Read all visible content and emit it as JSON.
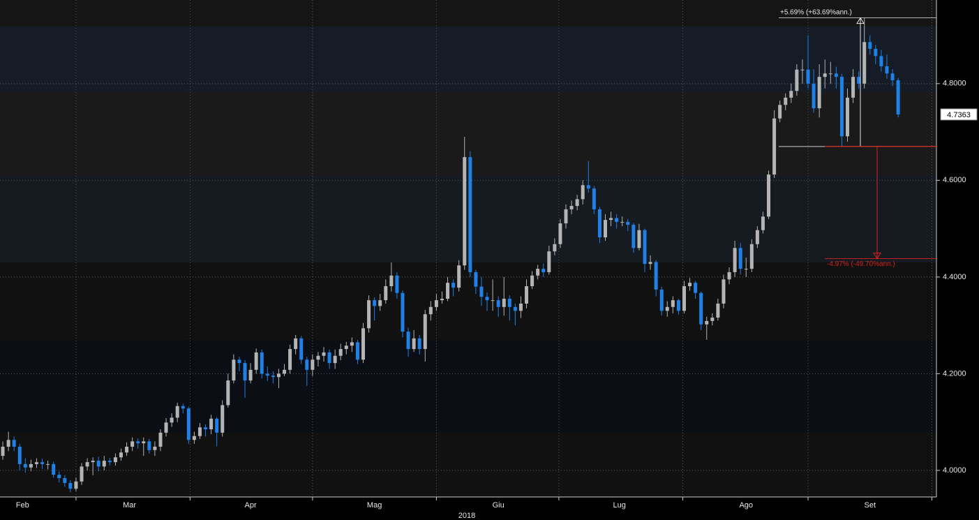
{
  "chart_data": {
    "type": "candlestick",
    "xlabel": "2018",
    "up_color": "#b4b4b4",
    "down_color": "#1f80e6",
    "ylim": [
      3.945,
      4.973
    ],
    "yticks": [
      {
        "value": 4.0,
        "label": "4.0000"
      },
      {
        "value": 4.2,
        "label": "4.2000"
      },
      {
        "value": 4.4,
        "label": "4.4000"
      },
      {
        "value": 4.6,
        "label": "4.6000"
      },
      {
        "value": 4.8,
        "label": "4.8000"
      }
    ],
    "xlim": [
      -0.5,
      165.8
    ],
    "xticks": [
      {
        "value": 3.5,
        "label": "Feb"
      },
      {
        "value": 22.5,
        "label": "Mar"
      },
      {
        "value": 44,
        "label": "Apr"
      },
      {
        "value": 66,
        "label": "Mag"
      },
      {
        "value": 88,
        "label": "Giu"
      },
      {
        "value": 109.5,
        "label": "Lug"
      },
      {
        "value": 132,
        "label": "Ago"
      },
      {
        "value": 154,
        "label": "Set"
      }
    ],
    "grid": true,
    "open": [
      4.03,
      4.049,
      4.063,
      4.049,
      4.013,
      4.006,
      4.013,
      4.017,
      4.013,
      4.013,
      3.991,
      3.984,
      3.974,
      3.962,
      3.977,
      4.008,
      4.017,
      4.02,
      4.008,
      4.02,
      4.017,
      4.027,
      4.037,
      4.049,
      4.06,
      4.056,
      4.06,
      4.042,
      4.049,
      4.078,
      4.099,
      4.109,
      4.133,
      4.128,
      4.063,
      4.071,
      4.089,
      4.085,
      4.107,
      4.078,
      4.135,
      4.186,
      4.229,
      4.222,
      4.186,
      4.208,
      4.244,
      4.2,
      4.196,
      4.193,
      4.2,
      4.208,
      4.251,
      4.273,
      4.229,
      4.208,
      4.229,
      4.237,
      4.244,
      4.222,
      4.237,
      4.251,
      4.258,
      4.265,
      4.229,
      4.294,
      4.352,
      4.34,
      4.352,
      4.381,
      4.403,
      4.367,
      4.287,
      4.251,
      4.273,
      4.251,
      4.323,
      4.338,
      4.352,
      4.355,
      4.388,
      4.378,
      4.424,
      4.648,
      4.41,
      4.38,
      4.359,
      4.352,
      4.352,
      4.338,
      4.355,
      4.338,
      4.33,
      4.345,
      4.381,
      4.403,
      4.417,
      4.41,
      4.453,
      4.468,
      4.511,
      4.54,
      4.547,
      4.561,
      4.59,
      4.583,
      4.54,
      4.482,
      4.518,
      4.522,
      4.514,
      4.514,
      4.508,
      4.46,
      4.497,
      4.427,
      4.431,
      4.374,
      4.33,
      4.338,
      4.352,
      4.33,
      4.381,
      4.388,
      4.367,
      4.302,
      4.309,
      4.316,
      4.345,
      4.395,
      4.41,
      4.46,
      4.417,
      4.417,
      4.468,
      4.497,
      4.525,
      4.612,
      4.728,
      4.756,
      4.771,
      4.785,
      4.829,
      4.829,
      4.8,
      4.749,
      4.814,
      4.821,
      4.821,
      4.814,
      4.691,
      4.771,
      4.814,
      4.8,
      4.886,
      4.872,
      4.857,
      4.836,
      4.821,
      4.807
    ],
    "high": [
      4.06,
      4.08,
      4.07,
      4.055,
      4.025,
      4.022,
      4.025,
      4.024,
      4.02,
      4.018,
      3.998,
      3.99,
      3.98,
      3.985,
      4.015,
      4.025,
      4.027,
      4.028,
      4.03,
      4.026,
      4.035,
      4.045,
      4.058,
      4.068,
      4.066,
      4.068,
      4.065,
      4.06,
      4.085,
      4.108,
      4.118,
      4.14,
      4.138,
      4.132,
      4.08,
      4.098,
      4.095,
      4.115,
      4.11,
      4.145,
      4.2,
      4.24,
      4.235,
      4.228,
      4.222,
      4.252,
      4.25,
      4.215,
      4.205,
      4.21,
      4.22,
      4.26,
      4.28,
      4.278,
      4.235,
      4.24,
      4.245,
      4.255,
      4.25,
      4.25,
      4.262,
      4.266,
      4.275,
      4.27,
      4.305,
      4.362,
      4.358,
      4.365,
      4.395,
      4.43,
      4.41,
      4.372,
      4.295,
      4.29,
      4.28,
      4.332,
      4.35,
      4.365,
      4.37,
      4.4,
      4.395,
      4.435,
      4.69,
      4.66,
      4.415,
      4.4,
      4.368,
      4.395,
      4.36,
      4.4,
      4.362,
      4.345,
      4.36,
      4.395,
      4.412,
      4.425,
      4.428,
      4.465,
      4.48,
      4.52,
      4.55,
      4.558,
      4.57,
      4.6,
      4.64,
      4.588,
      4.545,
      4.53,
      4.535,
      4.53,
      4.525,
      4.52,
      4.512,
      4.51,
      4.5,
      4.445,
      4.435,
      4.38,
      4.35,
      4.36,
      4.355,
      4.392,
      4.398,
      4.392,
      4.37,
      4.318,
      4.325,
      4.355,
      4.405,
      4.42,
      4.475,
      4.47,
      4.44,
      4.478,
      4.505,
      4.535,
      4.62,
      4.745,
      4.765,
      4.78,
      4.8,
      4.84,
      4.85,
      4.9,
      4.83,
      4.84,
      4.85,
      4.845,
      4.835,
      4.82,
      4.79,
      4.83,
      4.825,
      4.936,
      4.9,
      4.88,
      4.87,
      4.86,
      4.83,
      4.812
    ],
    "low": [
      4.022,
      4.04,
      4.04,
      4.0,
      3.995,
      3.998,
      4.005,
      4.003,
      4.002,
      3.985,
      3.975,
      3.966,
      3.955,
      3.957,
      3.97,
      4.0,
      3.99,
      3.998,
      4.0,
      4.01,
      4.01,
      4.02,
      4.03,
      4.04,
      4.045,
      4.03,
      4.035,
      4.03,
      4.04,
      4.07,
      4.09,
      4.1,
      4.118,
      4.055,
      4.055,
      4.065,
      4.07,
      4.075,
      4.05,
      4.07,
      4.13,
      4.18,
      4.205,
      4.15,
      4.18,
      4.2,
      4.19,
      4.185,
      4.18,
      4.17,
      4.195,
      4.2,
      4.24,
      4.22,
      4.175,
      4.195,
      4.215,
      4.225,
      4.21,
      4.21,
      4.228,
      4.24,
      4.245,
      4.22,
      4.222,
      4.285,
      4.31,
      4.33,
      4.345,
      4.37,
      4.355,
      4.275,
      4.235,
      4.245,
      4.24,
      4.225,
      4.31,
      4.33,
      4.345,
      4.35,
      4.36,
      4.37,
      4.415,
      4.4,
      4.365,
      4.34,
      4.33,
      4.33,
      4.318,
      4.32,
      4.31,
      4.3,
      4.315,
      4.335,
      4.375,
      4.395,
      4.4,
      4.405,
      4.445,
      4.46,
      4.5,
      4.53,
      4.538,
      4.55,
      4.575,
      4.53,
      4.47,
      4.475,
      4.505,
      4.5,
      4.505,
      4.495,
      4.45,
      4.455,
      4.41,
      4.415,
      4.36,
      4.32,
      4.318,
      4.325,
      4.322,
      4.325,
      4.372,
      4.355,
      4.29,
      4.27,
      4.3,
      4.31,
      4.335,
      4.385,
      4.4,
      4.405,
      4.4,
      4.41,
      4.46,
      4.49,
      4.52,
      4.605,
      4.72,
      4.745,
      4.76,
      4.775,
      4.8,
      4.79,
      4.74,
      4.73,
      4.79,
      4.8,
      4.79,
      4.67,
      4.68,
      4.76,
      4.79,
      4.79,
      4.86,
      4.84,
      4.825,
      4.81,
      4.795,
      4.73
    ],
    "close": [
      4.049,
      4.063,
      4.049,
      4.013,
      4.006,
      4.013,
      4.017,
      4.013,
      4.013,
      3.991,
      3.984,
      3.974,
      3.962,
      3.977,
      4.008,
      4.017,
      4.02,
      4.008,
      4.02,
      4.017,
      4.027,
      4.037,
      4.049,
      4.06,
      4.056,
      4.06,
      4.042,
      4.049,
      4.078,
      4.099,
      4.109,
      4.133,
      4.128,
      4.063,
      4.071,
      4.089,
      4.085,
      4.107,
      4.078,
      4.135,
      4.186,
      4.229,
      4.222,
      4.186,
      4.208,
      4.244,
      4.2,
      4.196,
      4.193,
      4.2,
      4.208,
      4.251,
      4.273,
      4.229,
      4.208,
      4.229,
      4.237,
      4.244,
      4.222,
      4.237,
      4.251,
      4.258,
      4.265,
      4.229,
      4.294,
      4.352,
      4.34,
      4.352,
      4.381,
      4.403,
      4.367,
      4.287,
      4.251,
      4.273,
      4.251,
      4.323,
      4.338,
      4.352,
      4.355,
      4.388,
      4.378,
      4.424,
      4.648,
      4.41,
      4.38,
      4.359,
      4.352,
      4.352,
      4.338,
      4.355,
      4.338,
      4.33,
      4.345,
      4.381,
      4.403,
      4.417,
      4.41,
      4.453,
      4.468,
      4.511,
      4.54,
      4.547,
      4.561,
      4.59,
      4.583,
      4.54,
      4.482,
      4.518,
      4.522,
      4.514,
      4.514,
      4.508,
      4.46,
      4.497,
      4.427,
      4.431,
      4.374,
      4.33,
      4.338,
      4.352,
      4.33,
      4.381,
      4.388,
      4.367,
      4.302,
      4.309,
      4.316,
      4.345,
      4.395,
      4.41,
      4.46,
      4.417,
      4.417,
      4.468,
      4.497,
      4.525,
      4.612,
      4.728,
      4.756,
      4.771,
      4.785,
      4.829,
      4.829,
      4.8,
      4.749,
      4.814,
      4.821,
      4.821,
      4.814,
      4.691,
      4.771,
      4.814,
      4.8,
      4.886,
      4.872,
      4.857,
      4.836,
      4.821,
      4.807,
      4.7363
    ],
    "annotations": [
      {
        "text": "+5.69% (+63.69%ann.)",
        "from": 4.67,
        "to": 4.936,
        "color": "#e6e6e6"
      },
      {
        "text": "-4.97% (-49.70%ann.)",
        "from": 4.67,
        "to": 4.438,
        "color": "#d8221e"
      }
    ]
  }
}
